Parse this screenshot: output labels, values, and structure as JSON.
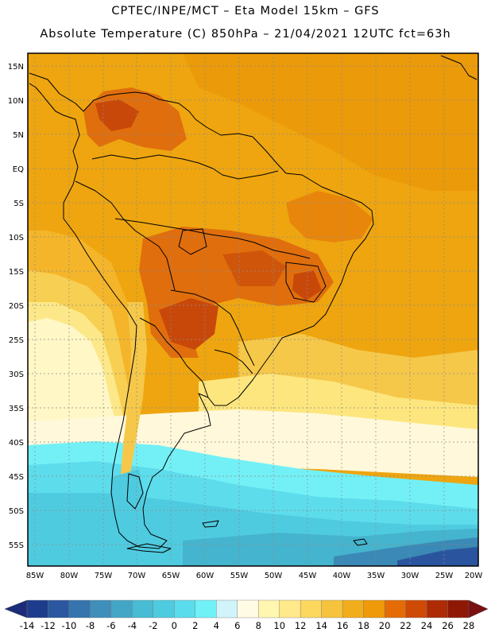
{
  "header": {
    "line1": "CPTEC/INPE/MCT –   Eta Model 15km – GFS",
    "line2": "Absolute Temperature (C) 850hPa – 21/04/2021 12UTC fct=63h"
  },
  "map": {
    "lat_labels": [
      "15N",
      "10N",
      "5N",
      "EQ",
      "5S",
      "10S",
      "15S",
      "20S",
      "25S",
      "30S",
      "35S",
      "40S",
      "45S",
      "50S",
      "55S"
    ],
    "lon_labels": [
      "85W",
      "80W",
      "75W",
      "70W",
      "65W",
      "60W",
      "55W",
      "50W",
      "45W",
      "40W",
      "35W",
      "30W",
      "25W",
      "20W"
    ],
    "domain": {
      "lon_min": -86,
      "lon_max": -20,
      "lat_min": -58,
      "lat_max": 17
    },
    "grid": "dotted",
    "background_temperature_c": 20
  },
  "colorbar": {
    "labels": [
      "-14",
      "-12",
      "-10",
      "-8",
      "-6",
      "-4",
      "-2",
      "0",
      "2",
      "4",
      "6",
      "8",
      "10",
      "12",
      "14",
      "16",
      "18",
      "20",
      "22",
      "24",
      "26",
      "28"
    ],
    "colors": [
      "#1e3c8c",
      "#2a579f",
      "#3574ad",
      "#3f8fba",
      "#44a6c7",
      "#48bcd4",
      "#4fcbe0",
      "#5bdcec",
      "#70f1f8",
      "#d0f4fa",
      "#fffbe5",
      "#fff6b0",
      "#ffe98a",
      "#fcd85f",
      "#f6c33d",
      "#f2ad1c",
      "#ee9a09",
      "#e56b06",
      "#cf4a05",
      "#ae2b05",
      "#8f1805"
    ],
    "under_color": "#1c2c78",
    "over_color": "#7a0f12"
  }
}
